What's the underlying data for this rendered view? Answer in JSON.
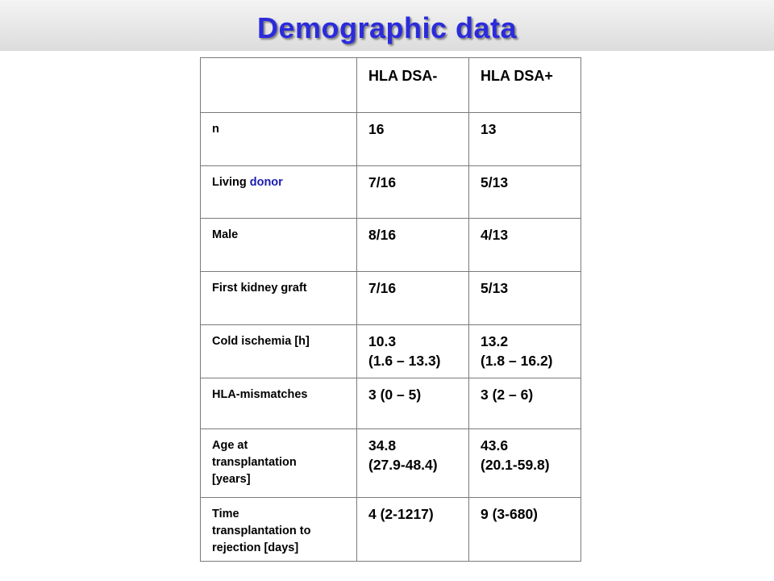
{
  "title": "Demographic data",
  "table": {
    "headers": [
      "",
      "HLA DSA-",
      "HLA DSA+"
    ],
    "rows": [
      {
        "label": "n",
        "dsa_neg": "16",
        "dsa_pos": "13"
      },
      {
        "label_a": "Living ",
        "label_b": "donor",
        "dsa_neg": "7/16",
        "dsa_pos": "5/13"
      },
      {
        "label": "Male",
        "dsa_neg": "8/16",
        "dsa_pos": "4/13"
      },
      {
        "label": "First kidney graft",
        "dsa_neg": "7/16",
        "dsa_pos": "5/13"
      },
      {
        "label": "Cold ischemia [h]",
        "dsa_neg": "10.3\n(1.6 – 13.3)",
        "dsa_pos": "13.2\n(1.8 – 16.2)"
      },
      {
        "label": "HLA-mismatches",
        "dsa_neg": "3 (0 – 5)",
        "dsa_pos": "3 (2 – 6)"
      },
      {
        "label": "Age at\ntransplantation\n[years]",
        "dsa_neg": "34.8\n(27.9-48.4)",
        "dsa_pos": "43.6\n(20.1-59.8)"
      },
      {
        "label": "Time\ntransplantation to\nrejection [days]",
        "dsa_neg": "4 (2-1217)",
        "dsa_pos": "9 (3-680)"
      }
    ]
  },
  "colors": {
    "title": "#2b2bdc",
    "accent_text": "#1b1bb5",
    "border": "#7a7a7a"
  }
}
